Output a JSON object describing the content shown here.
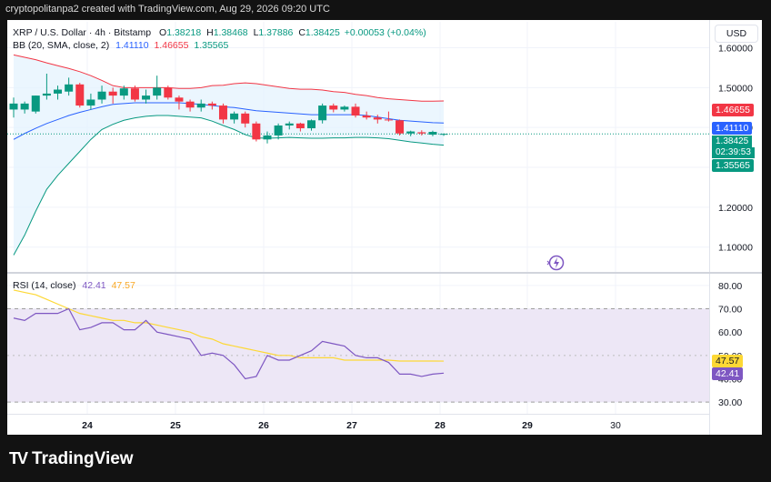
{
  "header": {
    "attribution": "cryptopolitanpa2 created with TradingView.com, Aug 29, 2026 09:20 UTC"
  },
  "currency_button": "USD",
  "legend": {
    "symbol": "XRP / U.S. Dollar · 4h · Bitstamp",
    "open_label": "O",
    "open": "1.38218",
    "high_label": "H",
    "high": "1.38468",
    "low_label": "L",
    "low": "1.37886",
    "close_label": "C",
    "close": "1.38425",
    "change": "+0.00053 (+0.04%)",
    "bb_label": "BB (20, SMA, close, 2)",
    "bb_basis": "1.41110",
    "bb_upper": "1.46655",
    "bb_lower": "1.35565",
    "rsi_label": "RSI (14, close)",
    "rsi_value": "42.41",
    "rsi_ma": "47.57"
  },
  "price_tags": {
    "upper": "1.46655",
    "basis": "1.41110",
    "last": "1.38425",
    "countdown": "02:39:53",
    "lower": "1.35565"
  },
  "rsi_tags": {
    "ma": "47.57",
    "rsi": "42.41"
  },
  "footer": {
    "brand": "TradingView"
  },
  "colors": {
    "up": "#089981",
    "down": "#f23645",
    "bb_upper": "#f23645",
    "bb_basis": "#2962ff",
    "bb_lower": "#089981",
    "bb_fill": "#e3f2fd",
    "rsi_line": "#7e57c2",
    "rsi_ma": "#fdd835",
    "rsi_band": "#ede7f6",
    "grid": "#f0f3fa"
  },
  "chart_data": {
    "type": "candlestick",
    "price_axis": {
      "ylim": [
        1.04,
        1.665
      ],
      "ticks": [
        "1.60000",
        "1.50000",
        "1.40000",
        "1.30000",
        "1.20000",
        "1.10000"
      ],
      "tick_values": [
        1.6,
        1.5,
        1.4,
        1.3,
        1.2,
        1.1
      ]
    },
    "x_axis": {
      "ticks": [
        "24",
        "25",
        "26",
        "27",
        "28",
        "29",
        "30"
      ]
    },
    "candles": [
      {
        "o": 1.445,
        "h": 1.475,
        "l": 1.425,
        "c": 1.46
      },
      {
        "o": 1.445,
        "h": 1.465,
        "l": 1.435,
        "c": 1.46
      },
      {
        "o": 1.44,
        "h": 1.48,
        "l": 1.435,
        "c": 1.48
      },
      {
        "o": 1.48,
        "h": 1.535,
        "l": 1.47,
        "c": 1.485
      },
      {
        "o": 1.485,
        "h": 1.505,
        "l": 1.47,
        "c": 1.495
      },
      {
        "o": 1.49,
        "h": 1.525,
        "l": 1.48,
        "c": 1.508
      },
      {
        "o": 1.508,
        "h": 1.512,
        "l": 1.45,
        "c": 1.455
      },
      {
        "o": 1.455,
        "h": 1.485,
        "l": 1.445,
        "c": 1.47
      },
      {
        "o": 1.47,
        "h": 1.505,
        "l": 1.46,
        "c": 1.49
      },
      {
        "o": 1.49,
        "h": 1.5,
        "l": 1.46,
        "c": 1.48
      },
      {
        "o": 1.48,
        "h": 1.505,
        "l": 1.47,
        "c": 1.498
      },
      {
        "o": 1.498,
        "h": 1.505,
        "l": 1.465,
        "c": 1.47
      },
      {
        "o": 1.47,
        "h": 1.495,
        "l": 1.46,
        "c": 1.48
      },
      {
        "o": 1.48,
        "h": 1.53,
        "l": 1.47,
        "c": 1.5
      },
      {
        "o": 1.5,
        "h": 1.505,
        "l": 1.47,
        "c": 1.475
      },
      {
        "o": 1.475,
        "h": 1.48,
        "l": 1.445,
        "c": 1.465
      },
      {
        "o": 1.465,
        "h": 1.47,
        "l": 1.44,
        "c": 1.45
      },
      {
        "o": 1.45,
        "h": 1.47,
        "l": 1.44,
        "c": 1.46
      },
      {
        "o": 1.46,
        "h": 1.465,
        "l": 1.445,
        "c": 1.455
      },
      {
        "o": 1.455,
        "h": 1.46,
        "l": 1.41,
        "c": 1.42
      },
      {
        "o": 1.42,
        "h": 1.44,
        "l": 1.41,
        "c": 1.435
      },
      {
        "o": 1.435,
        "h": 1.44,
        "l": 1.4,
        "c": 1.41
      },
      {
        "o": 1.41,
        "h": 1.415,
        "l": 1.365,
        "c": 1.37
      },
      {
        "o": 1.37,
        "h": 1.39,
        "l": 1.36,
        "c": 1.38
      },
      {
        "o": 1.38,
        "h": 1.41,
        "l": 1.37,
        "c": 1.405
      },
      {
        "o": 1.405,
        "h": 1.415,
        "l": 1.395,
        "c": 1.41
      },
      {
        "o": 1.41,
        "h": 1.412,
        "l": 1.39,
        "c": 1.398
      },
      {
        "o": 1.398,
        "h": 1.42,
        "l": 1.392,
        "c": 1.418
      },
      {
        "o": 1.418,
        "h": 1.46,
        "l": 1.41,
        "c": 1.455
      },
      {
        "o": 1.455,
        "h": 1.46,
        "l": 1.438,
        "c": 1.445
      },
      {
        "o": 1.445,
        "h": 1.455,
        "l": 1.44,
        "c": 1.452
      },
      {
        "o": 1.452,
        "h": 1.46,
        "l": 1.425,
        "c": 1.43
      },
      {
        "o": 1.43,
        "h": 1.44,
        "l": 1.42,
        "c": 1.425
      },
      {
        "o": 1.425,
        "h": 1.432,
        "l": 1.41,
        "c": 1.42
      },
      {
        "o": 1.42,
        "h": 1.44,
        "l": 1.415,
        "c": 1.418
      },
      {
        "o": 1.418,
        "h": 1.42,
        "l": 1.38,
        "c": 1.385
      },
      {
        "o": 1.385,
        "h": 1.392,
        "l": 1.378,
        "c": 1.39
      },
      {
        "o": 1.388,
        "h": 1.393,
        "l": 1.38,
        "c": 1.385
      },
      {
        "o": 1.382,
        "h": 1.392,
        "l": 1.378,
        "c": 1.389
      },
      {
        "o": 1.382,
        "h": 1.385,
        "l": 1.379,
        "c": 1.384
      }
    ],
    "bb_upper": [
      1.582,
      1.576,
      1.57,
      1.562,
      1.555,
      1.548,
      1.54,
      1.53,
      1.518,
      1.505,
      1.5,
      1.5,
      1.5,
      1.5,
      1.5,
      1.498,
      1.498,
      1.5,
      1.505,
      1.506,
      1.51,
      1.512,
      1.51,
      1.506,
      1.502,
      1.498,
      1.496,
      1.496,
      1.494,
      1.49,
      1.488,
      1.483,
      1.48,
      1.475,
      1.472,
      1.47,
      1.468,
      1.466,
      1.466,
      1.46655
    ],
    "bb_basis": [
      1.37,
      1.385,
      1.398,
      1.41,
      1.42,
      1.43,
      1.438,
      1.445,
      1.452,
      1.458,
      1.46,
      1.462,
      1.462,
      1.462,
      1.462,
      1.462,
      1.46,
      1.458,
      1.455,
      1.452,
      1.45,
      1.446,
      1.442,
      1.44,
      1.438,
      1.436,
      1.434,
      1.432,
      1.432,
      1.432,
      1.432,
      1.432,
      1.43,
      1.426,
      1.422,
      1.418,
      1.416,
      1.414,
      1.412,
      1.4111
    ],
    "bb_lower": [
      1.08,
      1.13,
      1.19,
      1.245,
      1.28,
      1.31,
      1.34,
      1.37,
      1.395,
      1.408,
      1.418,
      1.424,
      1.428,
      1.43,
      1.43,
      1.428,
      1.426,
      1.424,
      1.416,
      1.405,
      1.395,
      1.382,
      1.374,
      1.373,
      1.374,
      1.375,
      1.374,
      1.373,
      1.373,
      1.374,
      1.374,
      1.375,
      1.375,
      1.374,
      1.372,
      1.368,
      1.364,
      1.361,
      1.358,
      1.35565
    ],
    "rsi": {
      "ylim": [
        25,
        85
      ],
      "ticks": [
        "80.00",
        "70.00",
        "60.00",
        "50.00",
        "40.00",
        "30.00"
      ],
      "tick_values": [
        80,
        70,
        60,
        50,
        40,
        30
      ],
      "band": [
        30,
        70
      ],
      "values": [
        66,
        65,
        68,
        68,
        68,
        70,
        61,
        62,
        64,
        64,
        61,
        61,
        65,
        60,
        59,
        58,
        57,
        50,
        51,
        50,
        46,
        40,
        41,
        50,
        48,
        48,
        50,
        52,
        56,
        55,
        54,
        50,
        49,
        49,
        47,
        42,
        42,
        41,
        42,
        42.41
      ],
      "ma": [
        78,
        77,
        76,
        74,
        72,
        70,
        68,
        67,
        66,
        65,
        65,
        64,
        64,
        63,
        62,
        61,
        60,
        58,
        57,
        55,
        54,
        53,
        52,
        51,
        50,
        50,
        49,
        49,
        49,
        49,
        48,
        48,
        48,
        48,
        48,
        47.6,
        47.6,
        47.6,
        47.6,
        47.57
      ]
    }
  }
}
